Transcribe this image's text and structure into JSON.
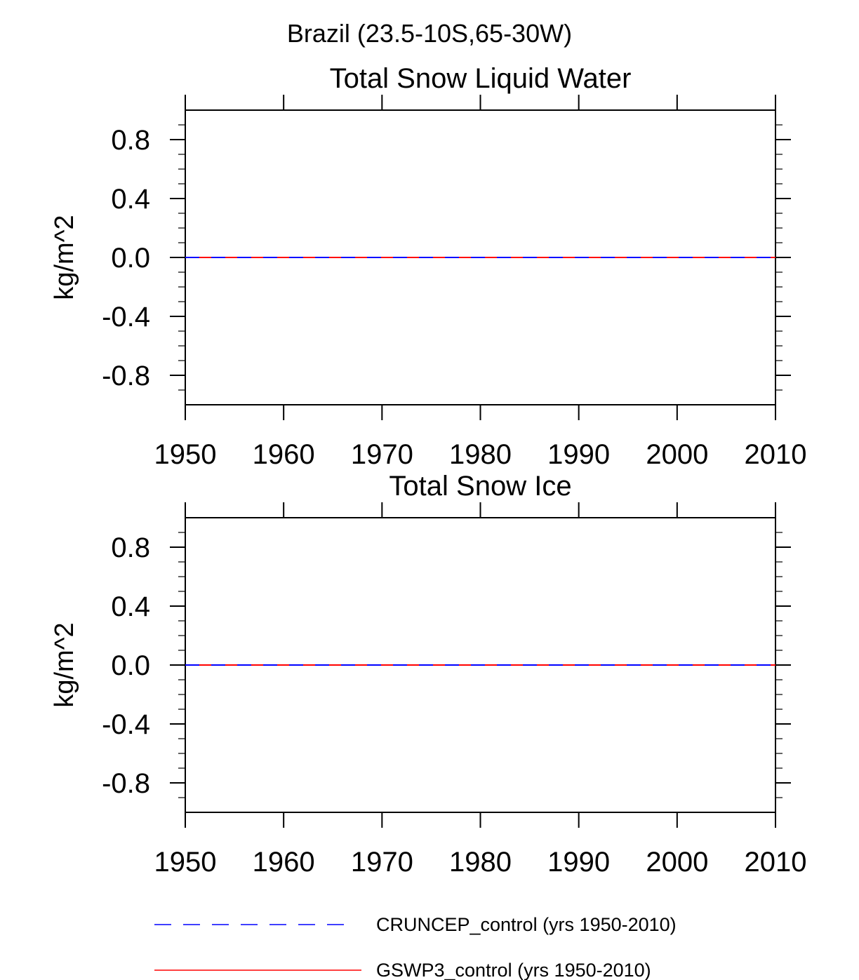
{
  "figure": {
    "main_title": "Brazil (23.5-10S,65-30W)"
  },
  "chart_data": [
    {
      "type": "line",
      "title": "Total Snow Liquid Water",
      "xlabel": "",
      "ylabel": "kg/m^2",
      "xlim": [
        1950,
        2010
      ],
      "ylim": [
        -1.0,
        1.0
      ],
      "x_ticks": [
        "1950",
        "1960",
        "1970",
        "1980",
        "1990",
        "2000",
        "2010"
      ],
      "y_ticks": [
        "0.8",
        "0.4",
        "0.0",
        "-0.4",
        "-0.8"
      ],
      "grid": false,
      "series": [
        {
          "name": "CRUNCEP_control (yrs 1950-2010)",
          "color": "#0000ff",
          "style": "dashed",
          "x": [
            1950,
            2010
          ],
          "y": [
            0.0,
            0.0
          ]
        },
        {
          "name": "GSWP3_control (yrs 1950-2010)",
          "color": "#ff0000",
          "style": "solid",
          "x": [
            1950,
            2010
          ],
          "y": [
            0.0,
            0.0
          ]
        }
      ]
    },
    {
      "type": "line",
      "title": "Total Snow Ice",
      "xlabel": "",
      "ylabel": "kg/m^2",
      "xlim": [
        1950,
        2010
      ],
      "ylim": [
        -1.0,
        1.0
      ],
      "x_ticks": [
        "1950",
        "1960",
        "1970",
        "1980",
        "1990",
        "2000",
        "2010"
      ],
      "y_ticks": [
        "0.8",
        "0.4",
        "0.0",
        "-0.4",
        "-0.8"
      ],
      "grid": false,
      "series": [
        {
          "name": "CRUNCEP_control (yrs 1950-2010)",
          "color": "#0000ff",
          "style": "dashed",
          "x": [
            1950,
            2010
          ],
          "y": [
            0.0,
            0.0
          ]
        },
        {
          "name": "GSWP3_control (yrs 1950-2010)",
          "color": "#ff0000",
          "style": "solid",
          "x": [
            1950,
            2010
          ],
          "y": [
            0.0,
            0.0
          ]
        }
      ]
    }
  ],
  "legend": {
    "placement": "bottom",
    "entries": [
      {
        "label": "CRUNCEP_control (yrs 1950-2010)",
        "color": "#0000ff",
        "style": "dashed"
      },
      {
        "label": "GSWP3_control (yrs 1950-2010)",
        "color": "#ff0000",
        "style": "solid"
      }
    ]
  }
}
